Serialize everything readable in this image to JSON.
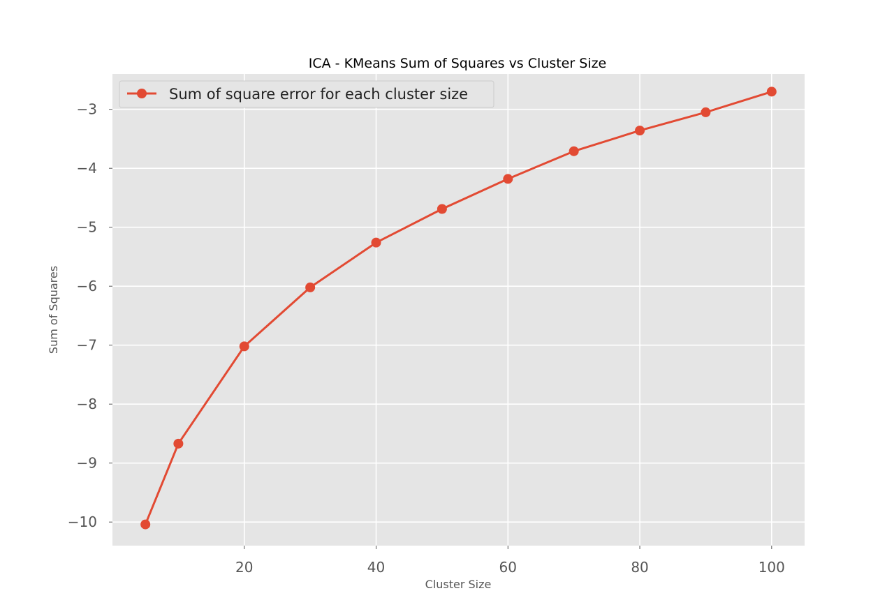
{
  "chart_data": {
    "type": "line",
    "title": "ICA - KMeans Sum of Squares vs Cluster Size",
    "xlabel": "Cluster Size",
    "ylabel": "Sum of Squares",
    "xlim": [
      0,
      105
    ],
    "ylim": [
      -10.4,
      -2.4
    ],
    "xticks": [
      20,
      40,
      60,
      80,
      100
    ],
    "yticks": [
      -10,
      -9,
      -8,
      -7,
      -6,
      -5,
      -4,
      -3
    ],
    "grid": true,
    "legend_position": "upper-left",
    "series": [
      {
        "name": "Sum of square error for each cluster size",
        "color": "#E24A33",
        "marker": "circle",
        "x": [
          5,
          10,
          20,
          30,
          40,
          50,
          60,
          70,
          80,
          90,
          100
        ],
        "y": [
          -10.04,
          -8.67,
          -7.02,
          -6.02,
          -5.26,
          -4.69,
          -4.18,
          -3.71,
          -3.36,
          -3.05,
          -2.7
        ]
      }
    ]
  }
}
